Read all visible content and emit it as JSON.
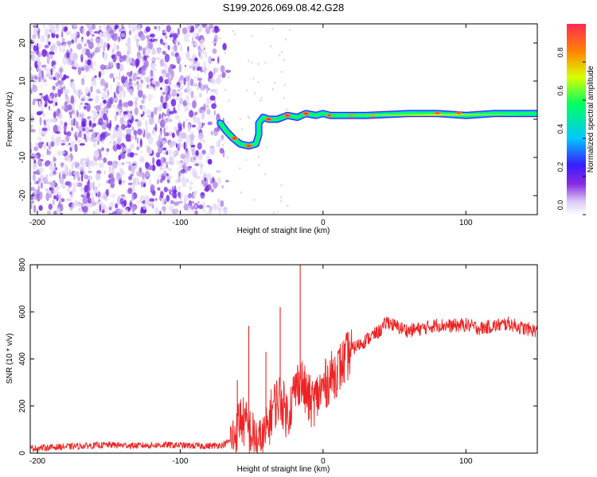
{
  "title": "S199.2026.069.08.42.G28",
  "colors": {
    "snr_line": "#ee2222",
    "axis": "#000000",
    "colormap": [
      "#ffffff",
      "#d9c8f4",
      "#8a2be2",
      "#3a1cff",
      "#00c8ff",
      "#00ff60",
      "#d8ff00",
      "#ff8800",
      "#ff2a55"
    ]
  },
  "chart_data": [
    {
      "type": "heatmap",
      "id": "spectrogram",
      "xlabel": "Height of straight line (km)",
      "ylabel": "Frequency (Hz)",
      "xlim": [
        -205,
        150
      ],
      "ylim": [
        -25,
        25
      ],
      "xticks": [
        -200,
        -100,
        0,
        100
      ],
      "yticks": [
        -20,
        -10,
        0,
        10,
        20
      ],
      "colorbar": {
        "label": "Normalized spectral amplitude",
        "range": [
          0.0,
          1.0
        ],
        "ticks": [
          "0.0",
          "0.2",
          "0.4",
          "0.6",
          "0.8"
        ]
      },
      "features": {
        "noise_region_x": [
          -205,
          -73
        ],
        "signal_trace": [
          {
            "x": -72,
            "y": -1
          },
          {
            "x": -68,
            "y": -3
          },
          {
            "x": -63,
            "y": -5
          },
          {
            "x": -58,
            "y": -6.5
          },
          {
            "x": -52,
            "y": -7
          },
          {
            "x": -47,
            "y": -6.5
          },
          {
            "x": -45,
            "y": -4
          },
          {
            "x": -45,
            "y": -1
          },
          {
            "x": -42,
            "y": 0.5
          },
          {
            "x": -38,
            "y": 0
          },
          {
            "x": -32,
            "y": 0
          },
          {
            "x": -25,
            "y": 1
          },
          {
            "x": -18,
            "y": 0.5
          },
          {
            "x": -12,
            "y": 1.5
          },
          {
            "x": -5,
            "y": 1
          },
          {
            "x": 0,
            "y": 1.5
          },
          {
            "x": 5,
            "y": 1
          },
          {
            "x": 30,
            "y": 1
          },
          {
            "x": 60,
            "y": 1.5
          },
          {
            "x": 80,
            "y": 1.5
          },
          {
            "x": 100,
            "y": 1
          },
          {
            "x": 120,
            "y": 1.5
          },
          {
            "x": 150,
            "y": 1.5
          }
        ]
      }
    },
    {
      "type": "line",
      "id": "snr",
      "xlabel": "Height of straight line (km)",
      "ylabel": "SNR (10 * v/v)",
      "xlim": [
        -205,
        150
      ],
      "ylim": [
        0,
        800
      ],
      "xticks": [
        -200,
        -100,
        0,
        100
      ],
      "yticks": [
        0,
        200,
        400,
        600,
        800
      ],
      "series": [
        {
          "points": [
            {
              "x": -205,
              "y": 20
            },
            {
              "x": -190,
              "y": 25
            },
            {
              "x": -170,
              "y": 30
            },
            {
              "x": -150,
              "y": 35
            },
            {
              "x": -130,
              "y": 32
            },
            {
              "x": -110,
              "y": 35
            },
            {
              "x": -95,
              "y": 32
            },
            {
              "x": -80,
              "y": 30
            },
            {
              "x": -70,
              "y": 35
            },
            {
              "x": -63,
              "y": 60
            },
            {
              "x": -58,
              "y": 150
            },
            {
              "x": -53,
              "y": 110
            },
            {
              "x": -48,
              "y": 60
            },
            {
              "x": -44,
              "y": 40
            },
            {
              "x": -40,
              "y": 80
            },
            {
              "x": -35,
              "y": 200
            },
            {
              "x": -30,
              "y": 240
            },
            {
              "x": -25,
              "y": 160
            },
            {
              "x": -20,
              "y": 260
            },
            {
              "x": -16,
              "y": 320
            },
            {
              "x": -12,
              "y": 250
            },
            {
              "x": -8,
              "y": 210
            },
            {
              "x": -4,
              "y": 240
            },
            {
              "x": 0,
              "y": 280
            },
            {
              "x": 5,
              "y": 320
            },
            {
              "x": 10,
              "y": 350
            },
            {
              "x": 15,
              "y": 390
            },
            {
              "x": 20,
              "y": 440
            },
            {
              "x": 25,
              "y": 460
            },
            {
              "x": 30,
              "y": 480
            },
            {
              "x": 35,
              "y": 500
            },
            {
              "x": 40,
              "y": 520
            },
            {
              "x": 45,
              "y": 560
            },
            {
              "x": 50,
              "y": 540
            },
            {
              "x": 60,
              "y": 520
            },
            {
              "x": 70,
              "y": 530
            },
            {
              "x": 80,
              "y": 545
            },
            {
              "x": 90,
              "y": 540
            },
            {
              "x": 100,
              "y": 545
            },
            {
              "x": 110,
              "y": 530
            },
            {
              "x": 120,
              "y": 540
            },
            {
              "x": 130,
              "y": 550
            },
            {
              "x": 140,
              "y": 530
            },
            {
              "x": 150,
              "y": 520
            }
          ],
          "spikes": [
            {
              "x": -60,
              "y": 310
            },
            {
              "x": -52,
              "y": 540
            },
            {
              "x": -40,
              "y": 430
            },
            {
              "x": -30,
              "y": 620
            },
            {
              "x": -16,
              "y": 800
            }
          ]
        }
      ]
    }
  ]
}
